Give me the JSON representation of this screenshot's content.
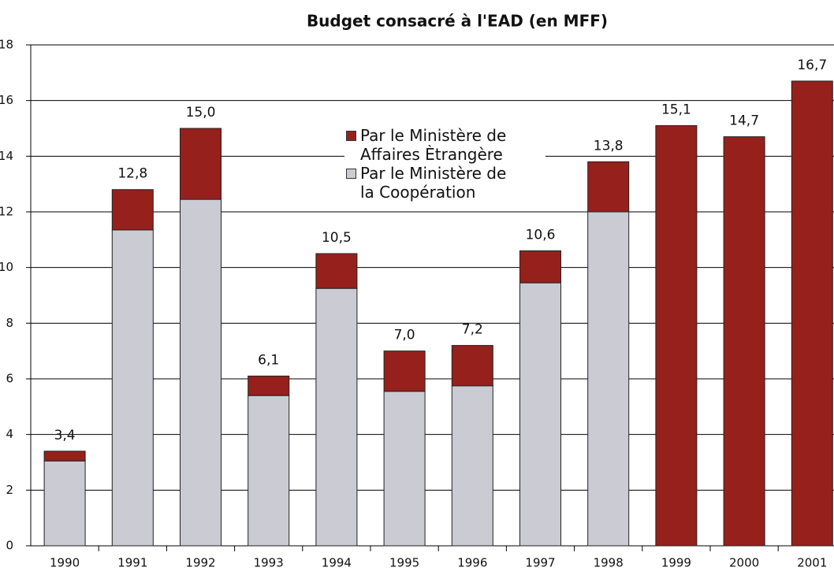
{
  "chart_data": {
    "type": "stacked_bar",
    "title": "Budget consacré à l'EAD (en MFF)",
    "categories": [
      "1990",
      "1991",
      "1992",
      "1993",
      "1994",
      "1995",
      "1996",
      "1997",
      "1998",
      "1999",
      "2000",
      "2001"
    ],
    "series": [
      {
        "name": "Par le Ministère de\nla Coopération",
        "color": "#cacbd3",
        "values": [
          3.05,
          11.35,
          12.45,
          5.4,
          9.25,
          5.55,
          5.75,
          9.45,
          12.0,
          0,
          0,
          0
        ]
      },
      {
        "name": "Par le Ministère de\nAffaires Ètrangère",
        "color": "#96201b",
        "values": [
          0.35,
          1.45,
          2.55,
          0.7,
          1.25,
          1.45,
          1.45,
          1.15,
          1.8,
          15.1,
          14.7,
          16.7
        ]
      }
    ],
    "total_labels": [
      "3,4",
      "12,8",
      "15,0",
      "6,1",
      "10,5",
      "7,0",
      "7,2",
      "10,6",
      "13,8",
      "15,1",
      "14,7",
      "16,7"
    ],
    "ylim": [
      0,
      18
    ],
    "yticks": [
      0,
      2,
      4,
      6,
      8,
      10,
      12,
      14,
      16,
      18
    ],
    "grid": true
  }
}
